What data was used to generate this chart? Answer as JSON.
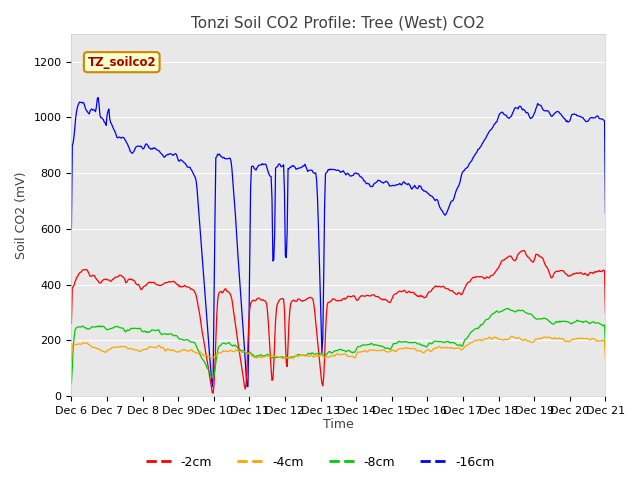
{
  "title": "Tonzi Soil CO2 Profile: Tree (West) CO2",
  "ylabel": "Soil CO2 (mV)",
  "xlabel": "Time",
  "legend_label": "TZ_soilco2",
  "series_labels": [
    "-2cm",
    "-4cm",
    "-8cm",
    "-16cm"
  ],
  "series_colors": [
    "#ff0000",
    "#ffa500",
    "#00cc00",
    "#0000ff"
  ],
  "ylim": [
    0,
    1300
  ],
  "bg_color": "#ffffff",
  "plot_bg_color": "#e8e8e8",
  "title_fontsize": 11,
  "axis_fontsize": 9,
  "tick_fontsize": 8,
  "n_points": 600,
  "x_start": 6,
  "x_end": 21,
  "xtick_positions": [
    6,
    7,
    8,
    9,
    10,
    11,
    12,
    13,
    14,
    15,
    16,
    17,
    18,
    19,
    20,
    21
  ],
  "xtick_labels": [
    "Dec 6",
    "Dec 7",
    "Dec 8",
    "Dec 9",
    "Dec 10",
    "Dec 11",
    "Dec 12",
    "Dec 13",
    "Dec 14",
    "Dec 15",
    "Dec 16",
    "Dec 17",
    "Dec 18",
    "Dec 19",
    "Dec 20",
    "Dec 21"
  ],
  "ytick_positions": [
    0,
    200,
    400,
    600,
    800,
    1000,
    1200
  ]
}
